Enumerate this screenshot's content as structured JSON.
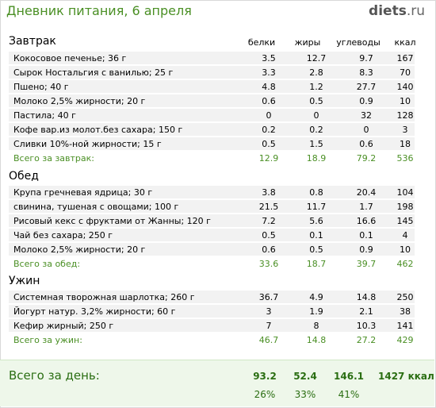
{
  "header": {
    "title": "Дневник питания, 6 апреля",
    "logo_main": "diets",
    "logo_tld": ".ru"
  },
  "columns": [
    "белки",
    "жиры",
    "углеводы",
    "ккал"
  ],
  "meals": [
    {
      "title": "Завтрак",
      "items": [
        {
          "name": "Кокосовое печенье; 36 г",
          "b": "3.5",
          "f": "12.7",
          "c": "9.7",
          "k": "167"
        },
        {
          "name": "Сырок Ностальгия с ванилью; 25 г",
          "b": "3.3",
          "f": "2.8",
          "c": "8.3",
          "k": "70"
        },
        {
          "name": "Пшено; 40 г",
          "b": "4.8",
          "f": "1.2",
          "c": "27.7",
          "k": "140"
        },
        {
          "name": "Молоко 2,5% жирности; 20 г",
          "b": "0.6",
          "f": "0.5",
          "c": "0.9",
          "k": "10"
        },
        {
          "name": "Пастила; 40 г",
          "b": "0",
          "f": "0",
          "c": "32",
          "k": "128"
        },
        {
          "name": "Кофе вар.из молот.без сахара; 150 г",
          "b": "0.2",
          "f": "0.2",
          "c": "0",
          "k": "3"
        },
        {
          "name": "Сливки 10%-ной жирности; 15 г",
          "b": "0.5",
          "f": "1.5",
          "c": "0.6",
          "k": "18"
        }
      ],
      "total": {
        "name": "Всего за завтрак:",
        "b": "12.9",
        "f": "18.9",
        "c": "79.2",
        "k": "536"
      }
    },
    {
      "title": "Обед",
      "items": [
        {
          "name": "Крупа гречневая ядрица; 30 г",
          "b": "3.8",
          "f": "0.8",
          "c": "20.4",
          "k": "104"
        },
        {
          "name": "свинина, тушеная с овощами; 100 г",
          "b": "21.5",
          "f": "11.7",
          "c": "1.7",
          "k": "198"
        },
        {
          "name": "Рисовый кекс с фруктами от Жанны; 120 г",
          "b": "7.2",
          "f": "5.6",
          "c": "16.6",
          "k": "145"
        },
        {
          "name": "Чай без сахара; 250 г",
          "b": "0.5",
          "f": "0.1",
          "c": "0.1",
          "k": "4"
        },
        {
          "name": "Молоко 2,5% жирности; 20 г",
          "b": "0.6",
          "f": "0.5",
          "c": "0.9",
          "k": "10"
        }
      ],
      "total": {
        "name": "Всего за обед:",
        "b": "33.6",
        "f": "18.7",
        "c": "39.7",
        "k": "462"
      }
    },
    {
      "title": "Ужин",
      "items": [
        {
          "name": "Системная творожная шарлотка; 260 г",
          "b": "36.7",
          "f": "4.9",
          "c": "14.8",
          "k": "250"
        },
        {
          "name": "Йогурт натур. 3,2% жирности; 60 г",
          "b": "3",
          "f": "1.9",
          "c": "2.1",
          "k": "38"
        },
        {
          "name": "Кефир жирный; 250 г",
          "b": "7",
          "f": "8",
          "c": "10.3",
          "k": "141"
        }
      ],
      "total": {
        "name": "Всего за ужин:",
        "b": "46.7",
        "f": "14.8",
        "c": "27.2",
        "k": "429"
      }
    }
  ],
  "day_total": {
    "label": "Всего за день:",
    "b": "93.2",
    "f": "52.4",
    "c": "146.1",
    "k": "1427 ккал",
    "b_pct": "26%",
    "f_pct": "33%",
    "c_pct": "41%"
  },
  "colors": {
    "accent": "#4a8f24",
    "row_bg": "#f2f2f2",
    "summary_bg": "#eef7ea"
  }
}
